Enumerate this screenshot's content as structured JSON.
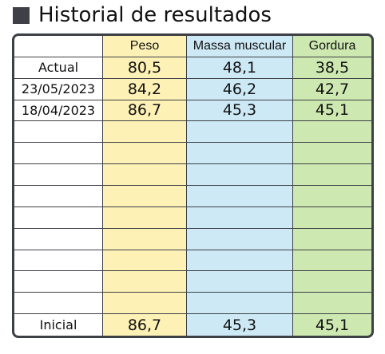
{
  "header": {
    "title": "Historial de resultados",
    "icon": "square-icon",
    "icon_color": "#3d4045"
  },
  "table": {
    "columns": [
      "",
      "Peso",
      "Massa muscular",
      "Gordura"
    ],
    "column_colors": {
      "peso": "#fdf1b6",
      "massa_muscular": "#cde9f6",
      "gordura": "#cde8b0"
    },
    "rows": [
      {
        "label": "Actual",
        "peso": "80,5",
        "massa": "48,1",
        "gordura": "38,5"
      },
      {
        "label": "23/05/2023",
        "peso": "84,2",
        "massa": "46,2",
        "gordura": "42,7"
      },
      {
        "label": "18/04/2023",
        "peso": "86,7",
        "massa": "45,3",
        "gordura": "45,1"
      },
      {
        "label": "",
        "peso": "",
        "massa": "",
        "gordura": ""
      },
      {
        "label": "",
        "peso": "",
        "massa": "",
        "gordura": ""
      },
      {
        "label": "",
        "peso": "",
        "massa": "",
        "gordura": ""
      },
      {
        "label": "",
        "peso": "",
        "massa": "",
        "gordura": ""
      },
      {
        "label": "",
        "peso": "",
        "massa": "",
        "gordura": ""
      },
      {
        "label": "",
        "peso": "",
        "massa": "",
        "gordura": ""
      },
      {
        "label": "",
        "peso": "",
        "massa": "",
        "gordura": ""
      },
      {
        "label": "",
        "peso": "",
        "massa": "",
        "gordura": ""
      },
      {
        "label": "",
        "peso": "",
        "massa": "",
        "gordura": ""
      }
    ],
    "footer": {
      "label": "Inicial",
      "peso": "86,7",
      "massa": "45,3",
      "gordura": "45,1"
    }
  }
}
